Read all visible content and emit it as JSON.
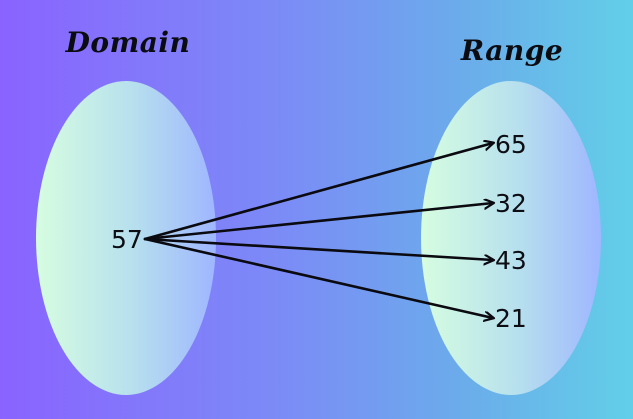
{
  "domain_set": {
    "title": "Domain",
    "values": [
      "57"
    ]
  },
  "range_set": {
    "title": "Range",
    "values": [
      "65",
      "32",
      "43",
      "21"
    ]
  },
  "mappings": [
    {
      "from": "57",
      "to": "65"
    },
    {
      "from": "57",
      "to": "32"
    },
    {
      "from": "57",
      "to": "43"
    },
    {
      "from": "57",
      "to": "21"
    }
  ],
  "colors": {
    "background_left": "#8a63ff",
    "background_right": "#62cfe8",
    "oval_left": "#d6fde0",
    "oval_right": "#9fb6ff",
    "ink": "#0a0a10"
  }
}
